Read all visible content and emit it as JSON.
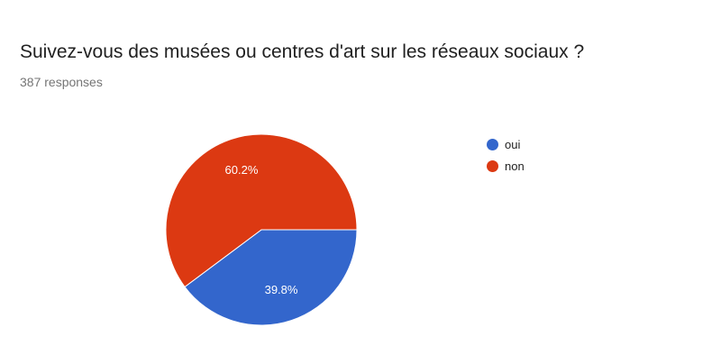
{
  "title": "Suivez-vous des musées ou centres d'art sur les réseaux sociaux ?",
  "response_count": "387 responses",
  "chart_data": {
    "type": "pie",
    "categories": [
      "oui",
      "non"
    ],
    "values": [
      39.8,
      60.2
    ],
    "data_labels": [
      "39.8%",
      "60.2%"
    ],
    "colors": [
      "#3366cc",
      "#dc3912"
    ],
    "legend_position": "right"
  }
}
